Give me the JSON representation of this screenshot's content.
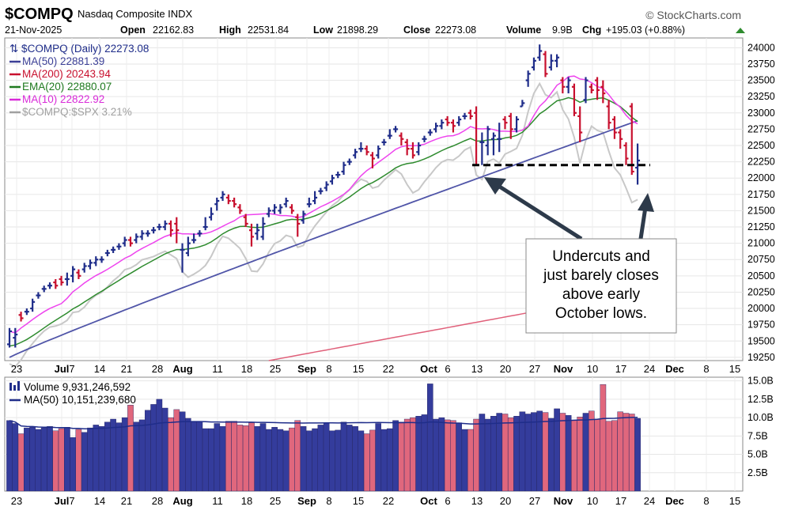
{
  "header": {
    "symbol": "$COMPQ",
    "name": "Nasdaq Composite INDX",
    "source": "© StockCharts.com",
    "date": "21-Nov-2025",
    "open_label": "Open",
    "open": "22162.83",
    "high_label": "High",
    "high": "22531.84",
    "low_label": "Low",
    "low": "21898.29",
    "close_label": "Close",
    "close": "22273.08",
    "volume_label": "Volume",
    "volume": "9.9B",
    "chg_label": "Chg",
    "chg": "+195.03 (+0.88%)"
  },
  "legend": [
    {
      "text": "$COMPQ (Daily) 22273.08",
      "color": "#1f2d8a"
    },
    {
      "text": "MA(50) 22881.39",
      "color": "#3b3f96"
    },
    {
      "text": "MA(200) 20243.94",
      "color": "#c8102e"
    },
    {
      "text": "EMA(20) 22880.07",
      "color": "#1f7a1f"
    },
    {
      "text": "MA(10) 22822.92",
      "color": "#d92ad9"
    },
    {
      "text": "$COMPQ:$SPX 3.21%",
      "color": "#a0a0a0"
    }
  ],
  "volume_legend": [
    {
      "text": "Volume 9,931,246,592",
      "color": "#1f2d8a"
    },
    {
      "text": "MA(50) 10,151,239,680",
      "color": "#1f2d8a"
    }
  ],
  "annotation": "Undercuts and just barely closes above early October lows.",
  "colors": {
    "up": "#1f2d8a",
    "down": "#c8102e",
    "ma50": "#5055a8",
    "ma200": "#e0607a",
    "ema20": "#2e8b2e",
    "ma10": "#ee44ee",
    "ratio": "#c8c8c8"
  },
  "chart_data": [
    {
      "type": "candlestick",
      "x_tick_labels": [
        "23",
        "Jul",
        "7",
        "14",
        "21",
        "28",
        "Aug",
        "11",
        "18",
        "25",
        "Sep",
        "8",
        "15",
        "22",
        "Oct",
        "6",
        "13",
        "20",
        "27",
        "Nov",
        "10",
        "17",
        "24",
        "Dec",
        "8",
        "15"
      ],
      "y_tick_labels": [
        "24000",
        "23750",
        "23500",
        "23250",
        "23000",
        "22750",
        "22500",
        "22250",
        "22000",
        "21750",
        "21500",
        "21250",
        "21000",
        "20750",
        "20500",
        "20250",
        "20000",
        "19750",
        "19500",
        "19250"
      ],
      "ylim": [
        19200,
        24150
      ],
      "price": [
        {
          "o": 19450,
          "c": 19650,
          "h": 19700,
          "l": 19400
        },
        {
          "o": 19550,
          "c": 19600,
          "h": 19700,
          "l": 19400
        },
        {
          "o": 19900,
          "c": 19850,
          "h": 19950,
          "l": 19800
        },
        {
          "o": 19950,
          "c": 19950,
          "h": 20000,
          "l": 19900
        },
        {
          "o": 20000,
          "c": 20100,
          "h": 20150,
          "l": 19950
        },
        {
          "o": 20200,
          "c": 20200,
          "h": 20250,
          "l": 20150
        },
        {
          "o": 20300,
          "c": 20300,
          "h": 20350,
          "l": 20250
        },
        {
          "o": 20350,
          "c": 20350,
          "h": 20400,
          "l": 20300
        },
        {
          "o": 20400,
          "c": 20350,
          "h": 20450,
          "l": 20300
        },
        {
          "o": 20450,
          "c": 20400,
          "h": 20500,
          "l": 20350
        },
        {
          "o": 20450,
          "c": 20450,
          "h": 20550,
          "l": 20350
        },
        {
          "o": 20500,
          "c": 20600,
          "h": 20650,
          "l": 20400
        },
        {
          "o": 20550,
          "c": 20500,
          "h": 20600,
          "l": 20450
        },
        {
          "o": 20600,
          "c": 20650,
          "h": 20700,
          "l": 20550
        },
        {
          "o": 20650,
          "c": 20700,
          "h": 20750,
          "l": 20600
        },
        {
          "o": 20700,
          "c": 20750,
          "h": 20800,
          "l": 20650
        },
        {
          "o": 20750,
          "c": 20750,
          "h": 20800,
          "l": 20700
        },
        {
          "o": 20850,
          "c": 20850,
          "h": 20900,
          "l": 20800
        },
        {
          "o": 20900,
          "c": 20900,
          "h": 20950,
          "l": 20850
        },
        {
          "o": 20950,
          "c": 20950,
          "h": 21000,
          "l": 20900
        },
        {
          "o": 21000,
          "c": 21050,
          "h": 21100,
          "l": 20950
        },
        {
          "o": 21050,
          "c": 21000,
          "h": 21100,
          "l": 20950
        },
        {
          "o": 21050,
          "c": 21100,
          "h": 21150,
          "l": 21000
        },
        {
          "o": 21100,
          "c": 21150,
          "h": 21200,
          "l": 21050
        },
        {
          "o": 21150,
          "c": 21150,
          "h": 21200,
          "l": 21100
        },
        {
          "o": 21200,
          "c": 21200,
          "h": 21250,
          "l": 21150
        },
        {
          "o": 21250,
          "c": 21250,
          "h": 21300,
          "l": 21200
        },
        {
          "o": 21250,
          "c": 21300,
          "h": 21350,
          "l": 21200
        },
        {
          "o": 21300,
          "c": 21200,
          "h": 21350,
          "l": 21100
        },
        {
          "o": 21300,
          "c": 21200,
          "h": 21400,
          "l": 21000
        },
        {
          "o": 20900,
          "c": 20900,
          "h": 21000,
          "l": 20550
        },
        {
          "o": 20850,
          "c": 21000,
          "h": 21100,
          "l": 20800
        },
        {
          "o": 21050,
          "c": 21050,
          "h": 21150,
          "l": 21000
        },
        {
          "o": 21150,
          "c": 21150,
          "h": 21200,
          "l": 21100
        },
        {
          "o": 21250,
          "c": 21250,
          "h": 21400,
          "l": 21200
        },
        {
          "o": 21400,
          "c": 21450,
          "h": 21550,
          "l": 21350
        },
        {
          "o": 21600,
          "c": 21650,
          "h": 21700,
          "l": 21500
        },
        {
          "o": 21700,
          "c": 21750,
          "h": 21800,
          "l": 21650
        },
        {
          "o": 21700,
          "c": 21650,
          "h": 21750,
          "l": 21600
        },
        {
          "o": 21650,
          "c": 21600,
          "h": 21700,
          "l": 21550
        },
        {
          "o": 21550,
          "c": 21500,
          "h": 21600,
          "l": 21450
        },
        {
          "o": 21400,
          "c": 21300,
          "h": 21450,
          "l": 21250
        },
        {
          "o": 21200,
          "c": 21100,
          "h": 21300,
          "l": 20950
        },
        {
          "o": 21150,
          "c": 21200,
          "h": 21300,
          "l": 21050
        },
        {
          "o": 21100,
          "c": 21300,
          "h": 21400,
          "l": 21050
        },
        {
          "o": 21450,
          "c": 21500,
          "h": 21550,
          "l": 21400
        },
        {
          "o": 21500,
          "c": 21550,
          "h": 21600,
          "l": 21450
        },
        {
          "o": 21500,
          "c": 21550,
          "h": 21600,
          "l": 21450
        },
        {
          "o": 21600,
          "c": 21650,
          "h": 21700,
          "l": 21550
        },
        {
          "o": 21550,
          "c": 21500,
          "h": 21600,
          "l": 21450
        },
        {
          "o": 21400,
          "c": 21300,
          "h": 21450,
          "l": 21100
        },
        {
          "o": 21350,
          "c": 21450,
          "h": 21500,
          "l": 21300
        },
        {
          "o": 21600,
          "c": 21600,
          "h": 21700,
          "l": 21550
        },
        {
          "o": 21650,
          "c": 21700,
          "h": 21800,
          "l": 21600
        },
        {
          "o": 21800,
          "c": 21800,
          "h": 21850,
          "l": 21750
        },
        {
          "o": 21850,
          "c": 21900,
          "h": 21950,
          "l": 21800
        },
        {
          "o": 21950,
          "c": 22000,
          "h": 22050,
          "l": 21900
        },
        {
          "o": 22050,
          "c": 22050,
          "h": 22100,
          "l": 22000
        },
        {
          "o": 22100,
          "c": 22200,
          "h": 22250,
          "l": 22050
        },
        {
          "o": 22250,
          "c": 22250,
          "h": 22300,
          "l": 22200
        },
        {
          "o": 22350,
          "c": 22400,
          "h": 22450,
          "l": 22300
        },
        {
          "o": 22450,
          "c": 22450,
          "h": 22550,
          "l": 22400
        },
        {
          "o": 22450,
          "c": 22400,
          "h": 22500,
          "l": 22350
        },
        {
          "o": 22350,
          "c": 22300,
          "h": 22400,
          "l": 22150
        },
        {
          "o": 22350,
          "c": 22450,
          "h": 22500,
          "l": 22300
        },
        {
          "o": 22550,
          "c": 22550,
          "h": 22600,
          "l": 22500
        },
        {
          "o": 22650,
          "c": 22650,
          "h": 22750,
          "l": 22600
        },
        {
          "o": 22750,
          "c": 22750,
          "h": 22800,
          "l": 22700
        },
        {
          "o": 22650,
          "c": 22600,
          "h": 22700,
          "l": 22500
        },
        {
          "o": 22550,
          "c": 22450,
          "h": 22600,
          "l": 22350
        },
        {
          "o": 22450,
          "c": 22350,
          "h": 22550,
          "l": 22300
        },
        {
          "o": 22400,
          "c": 22500,
          "h": 22550,
          "l": 22350
        },
        {
          "o": 22600,
          "c": 22600,
          "h": 22650,
          "l": 22550
        },
        {
          "o": 22700,
          "c": 22700,
          "h": 22750,
          "l": 22650
        },
        {
          "o": 22750,
          "c": 22800,
          "h": 22850,
          "l": 22700
        },
        {
          "o": 22800,
          "c": 22850,
          "h": 22900,
          "l": 22750
        },
        {
          "o": 22900,
          "c": 22850,
          "h": 22950,
          "l": 22800
        },
        {
          "o": 22850,
          "c": 22800,
          "h": 22900,
          "l": 22700
        },
        {
          "o": 22850,
          "c": 22900,
          "h": 22950,
          "l": 22800
        },
        {
          "o": 22950,
          "c": 22950,
          "h": 23000,
          "l": 22900
        },
        {
          "o": 23000,
          "c": 22950,
          "h": 23050,
          "l": 22900
        },
        {
          "o": 23000,
          "c": 22200,
          "h": 23100,
          "l": 22200
        },
        {
          "o": 22550,
          "c": 22550,
          "h": 22700,
          "l": 22200
        },
        {
          "o": 22500,
          "c": 22750,
          "h": 22800,
          "l": 22350
        },
        {
          "o": 22600,
          "c": 22650,
          "h": 22700,
          "l": 22350
        },
        {
          "o": 22600,
          "c": 22600,
          "h": 22850,
          "l": 22400
        },
        {
          "o": 22900,
          "c": 22850,
          "h": 22950,
          "l": 22750
        },
        {
          "o": 22950,
          "c": 22750,
          "h": 23000,
          "l": 22600
        },
        {
          "o": 22750,
          "c": 22900,
          "h": 22950,
          "l": 22700
        },
        {
          "o": 23100,
          "c": 23150,
          "h": 23200,
          "l": 23100
        },
        {
          "o": 23500,
          "c": 23600,
          "h": 23650,
          "l": 23400
        },
        {
          "o": 23700,
          "c": 23800,
          "h": 23850,
          "l": 23650
        },
        {
          "o": 23850,
          "c": 23950,
          "h": 24050,
          "l": 23800
        },
        {
          "o": 23900,
          "c": 23600,
          "h": 23950,
          "l": 23550
        },
        {
          "o": 23700,
          "c": 23800,
          "h": 23900,
          "l": 23650
        },
        {
          "o": 23800,
          "c": 23850,
          "h": 23900,
          "l": 23700
        },
        {
          "o": 23500,
          "c": 23400,
          "h": 23550,
          "l": 23300
        },
        {
          "o": 23400,
          "c": 23500,
          "h": 23550,
          "l": 23300
        },
        {
          "o": 23400,
          "c": 23000,
          "h": 23450,
          "l": 22950
        },
        {
          "o": 22950,
          "c": 22700,
          "h": 23100,
          "l": 22550
        },
        {
          "o": 23200,
          "c": 23500,
          "h": 23550,
          "l": 23150
        },
        {
          "o": 23400,
          "c": 23350,
          "h": 23450,
          "l": 23300
        },
        {
          "o": 23500,
          "c": 23350,
          "h": 23550,
          "l": 23200
        },
        {
          "o": 23400,
          "c": 23300,
          "h": 23500,
          "l": 23150
        },
        {
          "o": 23100,
          "c": 22850,
          "h": 23200,
          "l": 22750
        },
        {
          "o": 22900,
          "c": 22700,
          "h": 22950,
          "l": 22600
        },
        {
          "o": 22700,
          "c": 22600,
          "h": 22750,
          "l": 22450
        },
        {
          "o": 22500,
          "c": 22300,
          "h": 22550,
          "l": 22200
        },
        {
          "o": 23100,
          "c": 22100,
          "h": 23150,
          "l": 22050
        },
        {
          "o": 22160,
          "c": 22270,
          "h": 22530,
          "l": 21900
        }
      ],
      "lines_note": "MA(50) rises ~19200→22880; MA(200) 19300→20244; EMA(20) and MA(10) follow price",
      "support_level": 22200
    },
    {
      "type": "bar",
      "y_tick_labels": [
        "15.0B",
        "12.5B",
        "10.0B",
        "7.5B",
        "5.0B",
        "2.5B"
      ],
      "ylim": [
        0,
        15.5
      ],
      "volume_billions": [
        9.6,
        9.2,
        7.8,
        8.6,
        8.7,
        8.4,
        8.6,
        8.8,
        8.2,
        8.5,
        8.7,
        7.3,
        8.4,
        8.0,
        8.6,
        9.0,
        8.8,
        9.4,
        9.8,
        9.3,
        10.0,
        11.7,
        9.4,
        9.7,
        11.0,
        11.8,
        12.5,
        11.3,
        10.0,
        11.1,
        10.8,
        9.9,
        9.4,
        9.5,
        8.5,
        8.5,
        9.2,
        8.8,
        9.5,
        9.5,
        9.0,
        8.9,
        9.3,
        8.8,
        9.2,
        8.4,
        8.7,
        8.4,
        8.2,
        8.6,
        9.6,
        8.8,
        8.2,
        8.5,
        9.0,
        9.3,
        8.2,
        8.3,
        9.4,
        9.0,
        8.8,
        8.2,
        7.8,
        8.3,
        9.2,
        8.4,
        8.5,
        9.6,
        9.4,
        9.8,
        10.0,
        10.2,
        10.4,
        14.6,
        9.8,
        10.0,
        9.7,
        9.6,
        9.3,
        8.4,
        8.4,
        9.8,
        10.5,
        9.8,
        10.2,
        10.6,
        10.5,
        10.0,
        10.2,
        10.8,
        10.5,
        10.7,
        10.9,
        10.7,
        9.9,
        11.2,
        10.6,
        10.3,
        9.6,
        10.1,
        10.6,
        10.9,
        9.8,
        14.5,
        9.5,
        9.6,
        10.8,
        10.6,
        10.5,
        9.9
      ]
    }
  ]
}
